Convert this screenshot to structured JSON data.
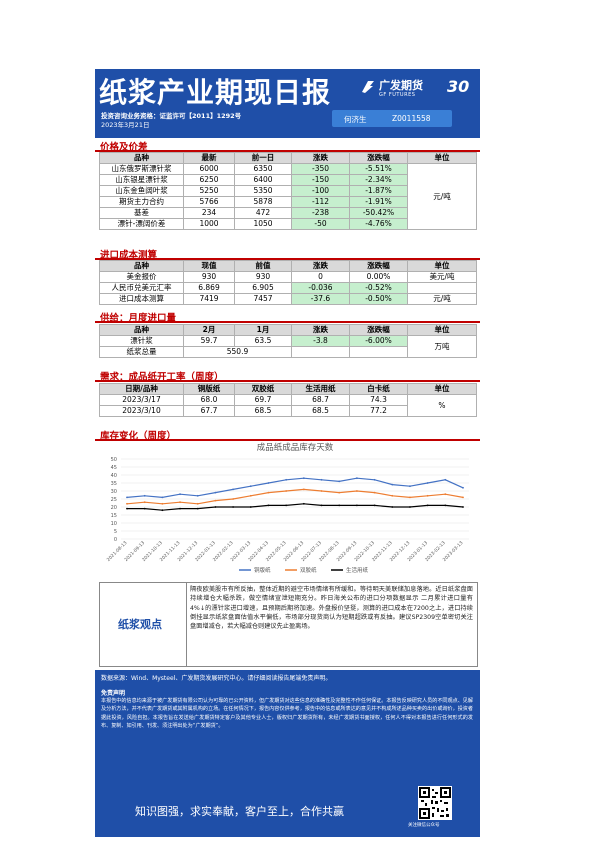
{
  "header": {
    "title": "纸浆产业期现日报",
    "license": "投资咨询业务资格：证监许可【2011】1292号",
    "date": "2023年3月21日",
    "logo_cn": "广发期货",
    "logo_en": "GF FUTURES",
    "logo_anniv": "30",
    "analyst_name": "何济生",
    "analyst_id": "Z0011558"
  },
  "sections": {
    "price": "价格及价差",
    "import_cost": "进口成本测算",
    "supply": "供给：月度进口量",
    "demand": "需求：成品纸开工率（周度）",
    "inventory": "库存变化（周度）"
  },
  "price_table": {
    "headers": [
      "品种",
      "最新",
      "前一日",
      "涨跌",
      "涨跌幅",
      "单位"
    ],
    "rows": [
      [
        "山东俄罗斯漂针浆",
        "6000",
        "6350",
        "-350",
        "-5.51%"
      ],
      [
        "山东银星漂针浆",
        "6250",
        "6400",
        "-150",
        "-2.34%"
      ],
      [
        "山东金鱼阔叶浆",
        "5250",
        "5350",
        "-100",
        "-1.87%"
      ],
      [
        "期货主力合约",
        "5766",
        "5878",
        "-112",
        "-1.91%"
      ],
      [
        "基差",
        "234",
        "472",
        "-238",
        "-50.42%"
      ],
      [
        "漂针-漂阔价差",
        "1000",
        "1050",
        "-50",
        "-4.76%"
      ]
    ],
    "unit": "元/吨"
  },
  "import_table": {
    "headers": [
      "品种",
      "现值",
      "前值",
      "涨跌",
      "涨跌幅",
      "单位"
    ],
    "rows": [
      [
        "美金报价",
        "930",
        "930",
        "0",
        "0.00%",
        "美元/吨"
      ],
      [
        "人民币兑美元汇率",
        "6.869",
        "6.905",
        "-0.036",
        "-0.52%",
        ""
      ],
      [
        "进口成本测算",
        "7419",
        "7457",
        "-37.6",
        "-0.50%",
        "元/吨"
      ]
    ]
  },
  "supply_table": {
    "headers": [
      "品种",
      "2月",
      "1月",
      "涨跌",
      "涨跌幅",
      "单位"
    ],
    "rows": [
      [
        "漂针浆",
        "59.7",
        "63.5",
        "-3.8",
        "-6.00%"
      ],
      [
        "纸浆总量",
        "550.9",
        "",
        "",
        ""
      ]
    ],
    "unit": "万吨"
  },
  "demand_table": {
    "headers": [
      "日期/品种",
      "铜版纸",
      "双胶纸",
      "生活用纸",
      "白卡纸",
      "单位"
    ],
    "rows": [
      [
        "2023/3/17",
        "68.0",
        "69.7",
        "68.7",
        "74.3"
      ],
      [
        "2023/3/10",
        "67.7",
        "68.5",
        "68.5",
        "77.2"
      ]
    ],
    "unit": "%"
  },
  "chart_data": {
    "type": "line",
    "title": "成品纸成品库存天数",
    "ylim": [
      0,
      50
    ],
    "yticks": [
      0,
      5,
      10,
      15,
      20,
      25,
      30,
      35,
      40,
      45,
      50
    ],
    "x": [
      "2021-08-13",
      "2021-09-13",
      "2021-10-13",
      "2021-11-13",
      "2021-12-13",
      "2022-01-13",
      "2022-02-13",
      "2022-03-13",
      "2022-04-13",
      "2022-05-13",
      "2022-06-13",
      "2022-07-13",
      "2022-08-13",
      "2022-09-13",
      "2022-10-13",
      "2022-11-13",
      "2022-12-13",
      "2023-01-13",
      "2023-02-13",
      "2023-03-13"
    ],
    "series": [
      {
        "name": "铜版纸",
        "color": "#4472c4",
        "values": [
          26,
          27,
          26,
          28,
          27,
          29,
          31,
          33,
          35,
          37,
          38,
          37,
          36,
          38,
          37,
          34,
          33,
          35,
          37,
          32
        ]
      },
      {
        "name": "双胶纸",
        "color": "#ed7d31",
        "values": [
          22,
          23,
          22,
          23,
          22,
          24,
          25,
          27,
          29,
          30,
          31,
          30,
          29,
          30,
          29,
          27,
          26,
          27,
          28,
          26
        ]
      },
      {
        "name": "生活用纸",
        "color": "#000000",
        "values": [
          19,
          19,
          18,
          19,
          19,
          20,
          20,
          20,
          21,
          21,
          22,
          21,
          21,
          21,
          21,
          20,
          20,
          21,
          21,
          20
        ]
      }
    ],
    "grid": true,
    "legend": "bottom"
  },
  "view": {
    "label": "纸浆观点",
    "text": "隔夜欧美股市有所反抽，整体近期的避空市场情绪有所缓和。等待明天美联储加息落地。近日纸浆盘面持续增仓大幅杀跌，做空情绪宣泄短期充分。昨日海关公布的进口分项数据显示  二月累计进口量有4%↓的漂针浆进口增速，且预期后期将加速。外盘报价坚挺，测算的进口成本在7200之上，进口持续倒挂显示纸浆盘面估值水平偏低，市场部分现货商认为短期超跌或有反抽。建议SP2309空单密切关注盘面增减仓，若大幅减仓则建议先止盈离场。"
  },
  "footer": {
    "source": "数据来源：Wind、Mysteel、广发期货发展研究中心。请仔细阅读报告尾端免责声明。",
    "disclaimer_title": "免责声明",
    "disclaimer": "本报告中的信息均来源于被广发期货有限公司认为可靠的已公开资料，但广发期货对这些信息的准确性及完整性不作任何保证。本报告反映研究人员的不同观点、见解及分析方法，并不代表广发期货或其附属机构的立场。在任何情况下，报告内容仅供参考，报告中的信息或所表达的意见并不构成所述品种买卖的出价或询价，投资者据此投资，风险自担。本报告旨在发送给广发期货特定客户及其他专业人士，版权归广发期货所有，未经广发期货书面授权，任何人不得对本报告进行任何形式的发布、复制、如引用、刊发、须注明出处为“广发期货”。",
    "slogan": "知识图强，求实奉献，客户至上，合作共赢",
    "qr_label": "关注微信公众号"
  }
}
